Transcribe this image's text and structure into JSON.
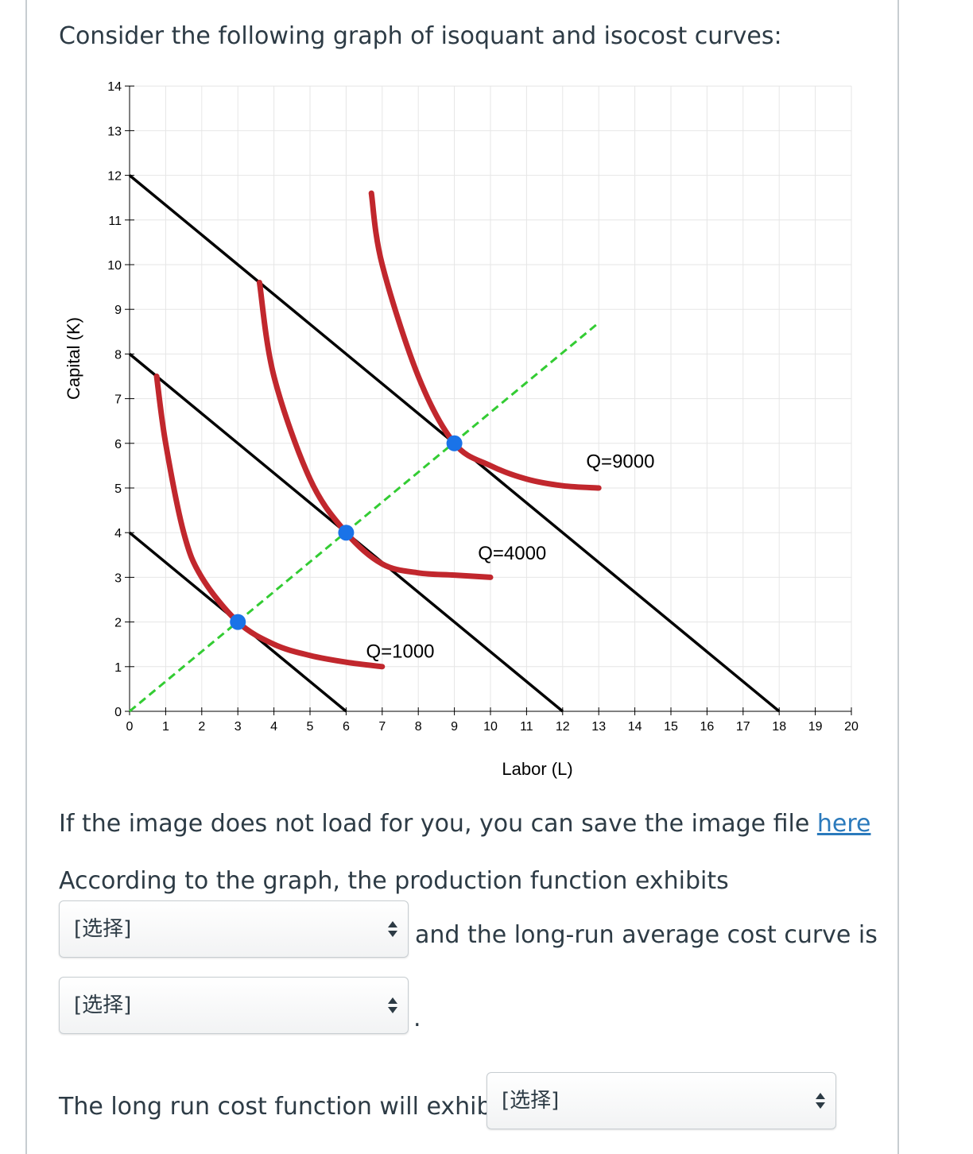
{
  "question": {
    "intro": "Consider the following graph of isoquant and isocost curves:",
    "image_note_prefix": "If the image does not load for you, you can save the image file",
    "image_note_link": "here",
    "q1_text": "According to the graph, the production function exhibits",
    "q1_after_select": "and the long-run average cost curve is",
    "q2_after_select": ".",
    "q3_text": "The long run cost function will exhibit"
  },
  "selects": {
    "select1": "[选择]",
    "select2": "[选择]",
    "select3": "[选择]"
  },
  "chart_data": {
    "type": "line",
    "xlabel": "Labor (L)",
    "ylabel": "Capital (K)",
    "xlim": [
      0,
      20
    ],
    "ylim": [
      0,
      14
    ],
    "x_ticks": [
      "0",
      "1",
      "2",
      "3",
      "4",
      "5",
      "6",
      "7",
      "8",
      "9",
      "10",
      "11",
      "12",
      "13",
      "14",
      "15",
      "16",
      "17",
      "18",
      "19",
      "20"
    ],
    "y_ticks": [
      "0",
      "1",
      "2",
      "3",
      "4",
      "5",
      "6",
      "7",
      "8",
      "9",
      "10",
      "11",
      "12",
      "13",
      "14"
    ],
    "grid": true,
    "colors": {
      "isoquant": "#c1272d",
      "isocost": "#000000",
      "expansion": "#33cc33",
      "point": "#1a73e8"
    },
    "isocost_lines": [
      {
        "from": [
          0,
          4
        ],
        "to": [
          6,
          0
        ]
      },
      {
        "from": [
          0,
          8
        ],
        "to": [
          12,
          0
        ]
      },
      {
        "from": [
          0,
          12
        ],
        "to": [
          18,
          0
        ]
      }
    ],
    "isoquants": [
      {
        "label": "Q=1000",
        "points": [
          [
            0.75,
            7.5
          ],
          [
            1,
            6
          ],
          [
            1.5,
            4
          ],
          [
            2,
            3
          ],
          [
            3,
            2
          ],
          [
            4,
            1.5
          ],
          [
            5,
            1.25
          ],
          [
            6,
            1.1
          ],
          [
            7,
            1.0
          ]
        ]
      },
      {
        "label": "Q=4000",
        "points": [
          [
            3.6,
            9.6
          ],
          [
            4,
            7.5
          ],
          [
            5,
            5.2
          ],
          [
            6,
            4
          ],
          [
            7,
            3.3
          ],
          [
            8,
            3.1
          ],
          [
            9,
            3.05
          ],
          [
            10,
            3.0
          ]
        ]
      },
      {
        "label": "Q=9000",
        "points": [
          [
            6.7,
            11.6
          ],
          [
            7,
            10
          ],
          [
            8,
            7.5
          ],
          [
            9,
            6
          ],
          [
            10,
            5.5
          ],
          [
            11,
            5.2
          ],
          [
            12,
            5.05
          ],
          [
            13,
            5.0
          ]
        ]
      }
    ],
    "expansion_path": {
      "from": [
        0,
        0
      ],
      "to": [
        13,
        8.7
      ]
    },
    "tangency_points": [
      [
        3,
        2
      ],
      [
        6,
        4
      ],
      [
        9,
        6
      ]
    ],
    "isoquant_labels": [
      {
        "text": "Q=1000",
        "at": [
          7.5,
          1.2
        ]
      },
      {
        "text": "Q=4000",
        "at": [
          10.6,
          3.4
        ]
      },
      {
        "text": "Q=9000",
        "at": [
          13.6,
          5.45
        ]
      }
    ]
  }
}
